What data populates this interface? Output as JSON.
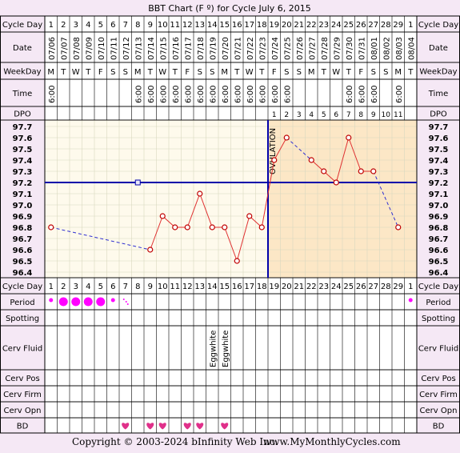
{
  "title": "BBT Chart (F º) for Cycle July 6, 2015",
  "footer": {
    "copyright": "Copyright © 2003-2024 bInfinity Web Inc.",
    "site": "www.MyMonthlyCycles.com"
  },
  "row_labels": {
    "cycle_day": "Cycle Day",
    "date": "Date",
    "weekday": "WeekDay",
    "time": "Time",
    "dpo": "DPO",
    "period": "Period",
    "spotting": "Spotting",
    "cerv_fluid": "Cerv Fluid",
    "cerv_pos": "Cerv Pos",
    "cerv_firm": "Cerv Firm",
    "cerv_opn": "Cerv Opn",
    "bd": "BD"
  },
  "cycle_days": [
    "1",
    "2",
    "3",
    "4",
    "5",
    "6",
    "7",
    "8",
    "9",
    "10",
    "11",
    "12",
    "13",
    "14",
    "15",
    "16",
    "17",
    "18",
    "19",
    "20",
    "21",
    "22",
    "23",
    "24",
    "25",
    "26",
    "27",
    "28",
    "29",
    "1"
  ],
  "dates": [
    "07/06",
    "07/07",
    "07/08",
    "07/09",
    "07/10",
    "07/11",
    "07/12",
    "07/13",
    "07/14",
    "07/15",
    "07/16",
    "07/17",
    "07/18",
    "07/19",
    "07/20",
    "07/21",
    "07/22",
    "07/23",
    "07/24",
    "07/25",
    "07/26",
    "07/27",
    "07/28",
    "07/29",
    "07/30",
    "07/31",
    "08/01",
    "08/02",
    "08/03",
    "08/04"
  ],
  "weekdays": [
    "M",
    "T",
    "W",
    "T",
    "F",
    "S",
    "S",
    "M",
    "T",
    "W",
    "T",
    "F",
    "S",
    "S",
    "M",
    "T",
    "W",
    "T",
    "F",
    "S",
    "S",
    "M",
    "T",
    "W",
    "T",
    "F",
    "S",
    "S",
    "M",
    "T"
  ],
  "times": [
    "6:00",
    "",
    "",
    "",
    "",
    "",
    "",
    "6:00",
    "6:00",
    "6:00",
    "6:00",
    "6:00",
    "6:00",
    "6:00",
    "6:00",
    "6:00",
    "6:00",
    "6:00",
    "6:00",
    "6:00",
    "",
    "",
    "",
    "",
    "6:00",
    "6:00",
    "6:00",
    "",
    "6:00",
    ""
  ],
  "dpo": [
    "",
    "",
    "",
    "",
    "",
    "",
    "",
    "",
    "",
    "",
    "",
    "",
    "",
    "",
    "",
    "",
    "",
    "",
    "1",
    "2",
    "3",
    "4",
    "5",
    "6",
    "7",
    "8",
    "9",
    "10",
    "11",
    ""
  ],
  "period": [
    "spot",
    "heavy",
    "heavy",
    "heavy",
    "heavy",
    "spot",
    "light",
    "",
    "",
    "",
    "",
    "",
    "",
    "",
    "",
    "",
    "",
    "",
    "",
    "",
    "",
    "",
    "",
    "",
    "",
    "",
    "",
    "",
    "",
    "spot"
  ],
  "cerv_fluid": [
    "",
    "",
    "",
    "",
    "",
    "",
    "",
    "",
    "",
    "",
    "",
    "",
    "",
    "Eggwhite",
    "Eggwhite",
    "",
    "",
    "",
    "",
    "",
    "",
    "",
    "",
    "",
    "",
    "",
    "",
    "",
    "",
    ""
  ],
  "bd": [
    false,
    false,
    false,
    false,
    false,
    false,
    true,
    false,
    true,
    true,
    false,
    true,
    true,
    false,
    true,
    false,
    false,
    false,
    false,
    false,
    false,
    false,
    false,
    false,
    false,
    false,
    false,
    false,
    false,
    false
  ],
  "ovulation_label": "OVULATION",
  "colors": {
    "line": "#e03030",
    "dashed": "#3030d0",
    "coverline": "#0000aa",
    "ovulation": "#0000aa",
    "period": "#ff00ff",
    "heart": "#e0308a",
    "pre_bg": "#fefaec",
    "post_bg": "#fce7c6",
    "page_bg": "#f5e8f5"
  },
  "chart_data": {
    "type": "line",
    "x": [
      1,
      2,
      3,
      4,
      5,
      6,
      7,
      8,
      9,
      10,
      11,
      12,
      13,
      14,
      15,
      16,
      17,
      18,
      19,
      20,
      21,
      22,
      23,
      24,
      25,
      26,
      27,
      28,
      29,
      30
    ],
    "y_ticks": [
      "97.7",
      "97.6",
      "97.5",
      "97.4",
      "97.3",
      "97.2",
      "97.1",
      "97.0",
      "96.9",
      "96.8",
      "96.7",
      "96.6",
      "96.5",
      "96.4"
    ],
    "ylim": [
      96.4,
      97.7
    ],
    "temps": [
      96.8,
      null,
      null,
      null,
      null,
      null,
      null,
      null,
      96.6,
      96.9,
      96.8,
      96.8,
      97.1,
      96.8,
      96.8,
      96.5,
      96.9,
      96.8,
      97.4,
      97.6,
      null,
      97.4,
      97.3,
      97.2,
      97.6,
      97.3,
      97.3,
      null,
      96.8,
      null
    ],
    "coverline": 97.2,
    "ovulation_day": 18.5
  }
}
